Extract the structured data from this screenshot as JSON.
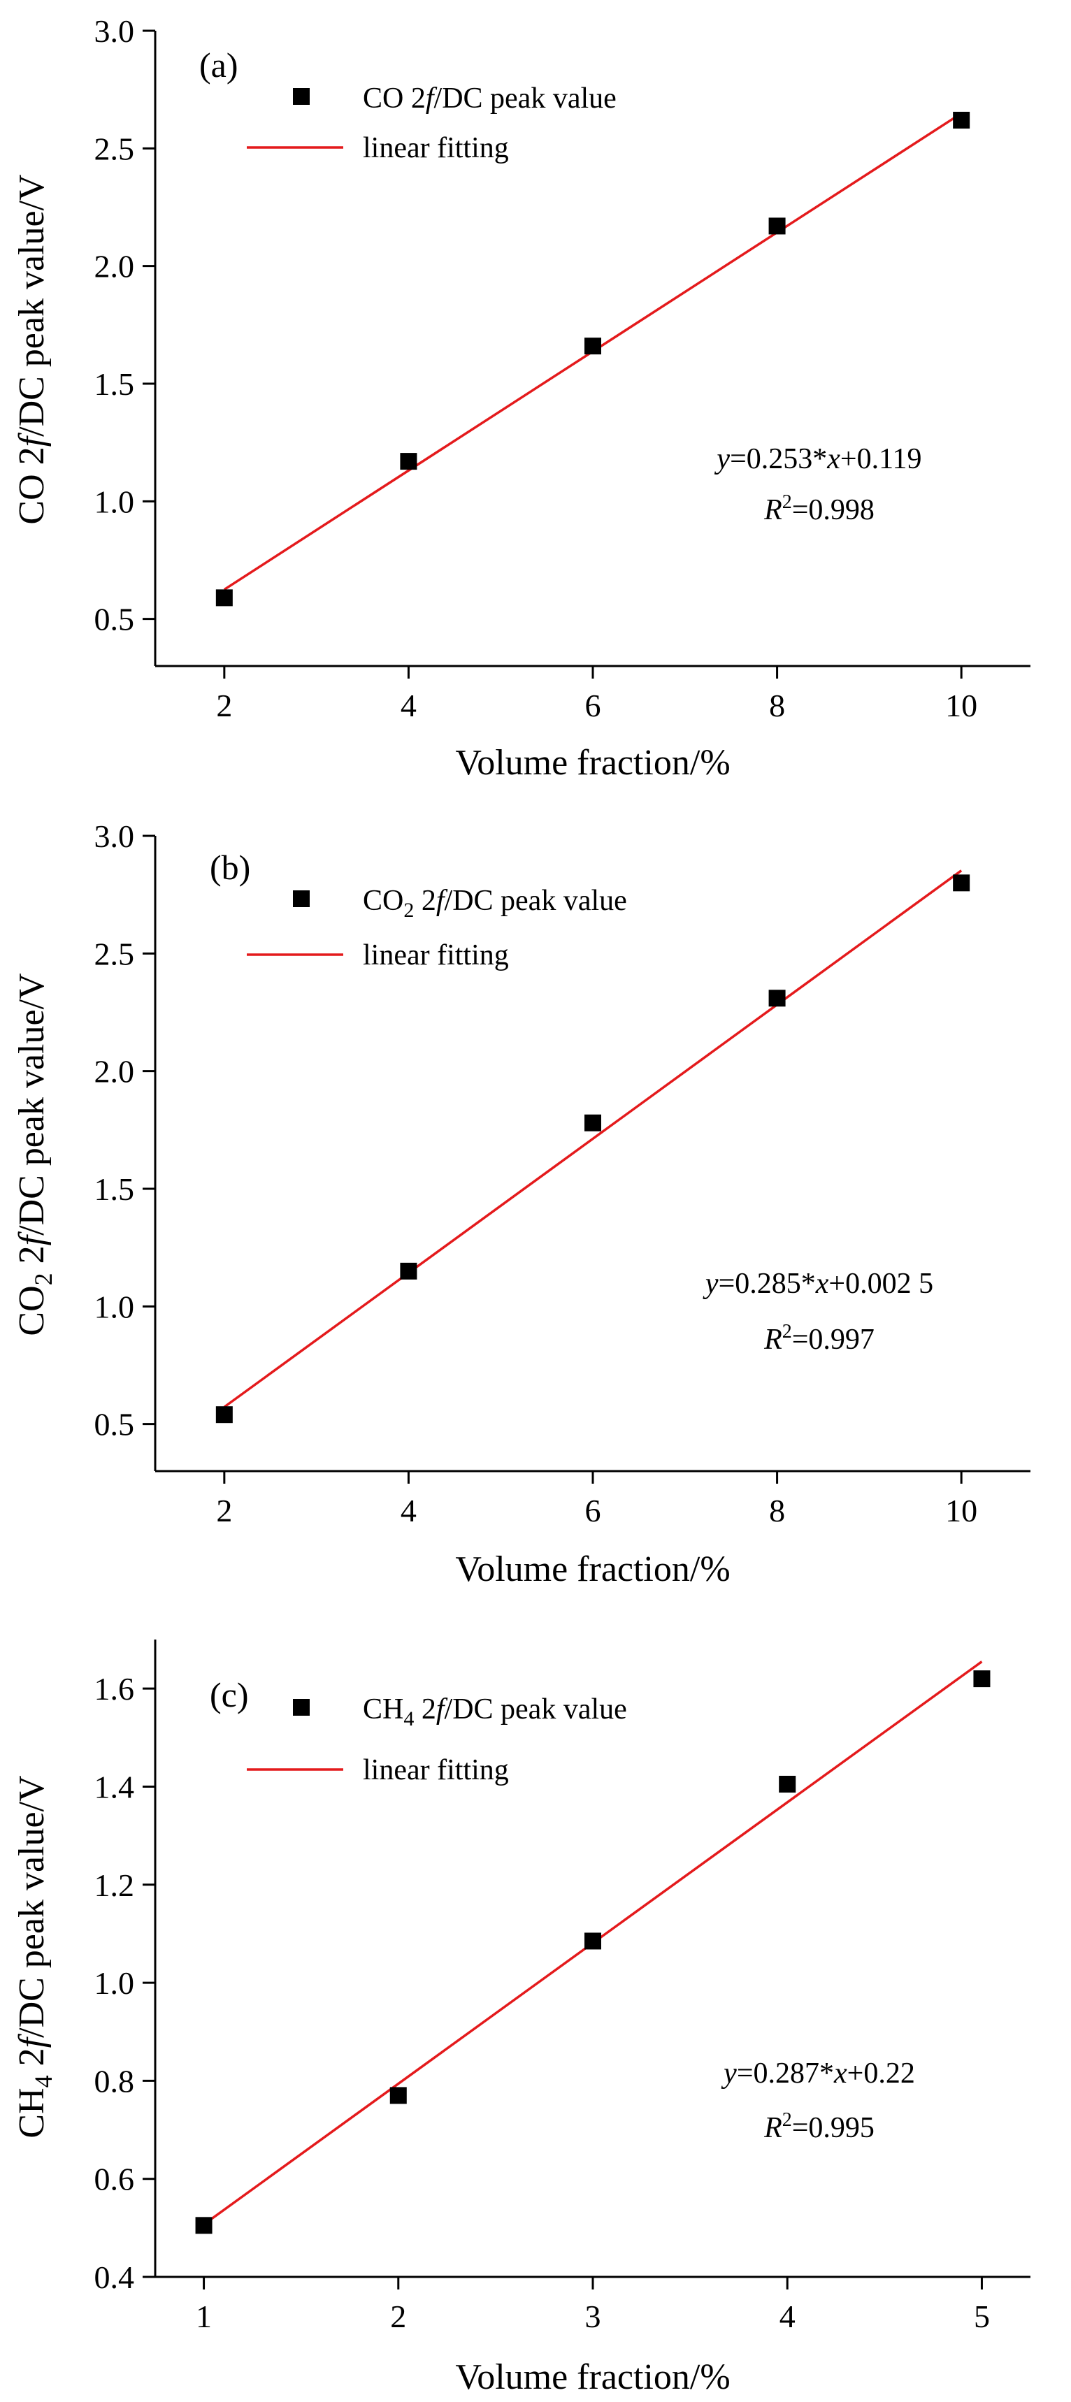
{
  "chart_data": [
    {
      "type": "scatter",
      "panel_label": "(a)",
      "xlabel": "Volume fraction/%",
      "ylabel": {
        "parts": [
          "CO 2",
          "f",
          "/DC peak value/V"
        ]
      },
      "xlim": [
        1.25,
        10.75
      ],
      "ylim": [
        0.3,
        3.0
      ],
      "xticks": [
        2,
        4,
        6,
        8,
        10
      ],
      "yticks": [
        0.5,
        1.0,
        1.5,
        2.0,
        2.5,
        3.0
      ],
      "ytick_labels": [
        "0.5",
        "1.0",
        "1.5",
        "2.0",
        "2.5",
        "3.0"
      ],
      "grid": false,
      "legend_position": "top-left",
      "series": [
        {
          "name": {
            "parts": [
              "CO 2",
              "f",
              "/DC peak value"
            ]
          },
          "kind": "points",
          "color": "#000000",
          "x": [
            2,
            4,
            6,
            8,
            10
          ],
          "y": [
            0.59,
            1.17,
            1.66,
            2.17,
            2.62
          ]
        },
        {
          "name": "linear fitting",
          "kind": "line",
          "color": "#e41a1c",
          "slope": 0.253,
          "intercept": 0.119,
          "x_range": [
            2,
            10
          ]
        }
      ],
      "annotations": {
        "equation": {
          "y_var": "y",
          "mid": "=0.253*",
          "x_var": "x",
          "tail": "+0.119"
        },
        "r2": {
          "r": "R",
          "sup": "2",
          "tail": "=0.998"
        }
      }
    },
    {
      "type": "scatter",
      "panel_label": "(b)",
      "xlabel": "Volume fraction/%",
      "ylabel": {
        "parts": [
          "CO",
          "2",
          " 2",
          "f",
          "/DC peak value/V"
        ]
      },
      "xlim": [
        1.25,
        10.75
      ],
      "ylim": [
        0.3,
        3.0
      ],
      "xticks": [
        2,
        4,
        6,
        8,
        10
      ],
      "yticks": [
        0.5,
        1.0,
        1.5,
        2.0,
        2.5,
        3.0
      ],
      "ytick_labels": [
        "0.5",
        "1.0",
        "1.5",
        "2.0",
        "2.5",
        "3.0"
      ],
      "grid": false,
      "legend_position": "top-left",
      "series": [
        {
          "name": {
            "parts": [
              "CO",
              "2",
              " 2",
              "f",
              "/DC peak value"
            ]
          },
          "kind": "points",
          "color": "#000000",
          "x": [
            2,
            4,
            6,
            8,
            10
          ],
          "y": [
            0.54,
            1.15,
            1.78,
            2.31,
            2.8
          ]
        },
        {
          "name": "linear fitting",
          "kind": "line",
          "color": "#e41a1c",
          "slope": 0.285,
          "intercept": 0.0025,
          "x_range": [
            2,
            10
          ]
        }
      ],
      "annotations": {
        "equation": {
          "y_var": "y",
          "mid": "=0.285*",
          "x_var": "x",
          "tail": "+0.002 5"
        },
        "r2": {
          "r": "R",
          "sup": "2",
          "tail": "=0.997"
        }
      }
    },
    {
      "type": "scatter",
      "panel_label": "(c)",
      "xlabel": "Volume fraction/%",
      "ylabel": {
        "parts": [
          "CH",
          "4",
          " 2",
          "f",
          "/DC peak value/V"
        ]
      },
      "xlim": [
        0.75,
        5.25
      ],
      "ylim": [
        0.4,
        1.7
      ],
      "xticks": [
        1,
        2,
        3,
        4,
        5
      ],
      "yticks": [
        0.4,
        0.6,
        0.8,
        1.0,
        1.2,
        1.4,
        1.6
      ],
      "ytick_labels": [
        "0.4",
        "0.6",
        "0.8",
        "1.0",
        "1.2",
        "1.4",
        "1.6"
      ],
      "grid": false,
      "legend_position": "top-left",
      "series": [
        {
          "name": {
            "parts": [
              "CH",
              "4",
              " 2",
              "f",
              "/DC peak value"
            ]
          },
          "kind": "points",
          "color": "#000000",
          "x": [
            1,
            2,
            3,
            4,
            5
          ],
          "y": [
            0.505,
            0.77,
            1.085,
            1.405,
            1.62
          ]
        },
        {
          "name": "linear fitting",
          "kind": "line",
          "color": "#e41a1c",
          "slope": 0.287,
          "intercept": 0.22,
          "x_range": [
            1,
            5
          ]
        }
      ],
      "annotations": {
        "equation": {
          "y_var": "y",
          "mid": "=0.287*",
          "x_var": "x",
          "tail": "+0.22"
        },
        "r2": {
          "r": "R",
          "sup": "2",
          "tail": "=0.995"
        }
      }
    }
  ]
}
